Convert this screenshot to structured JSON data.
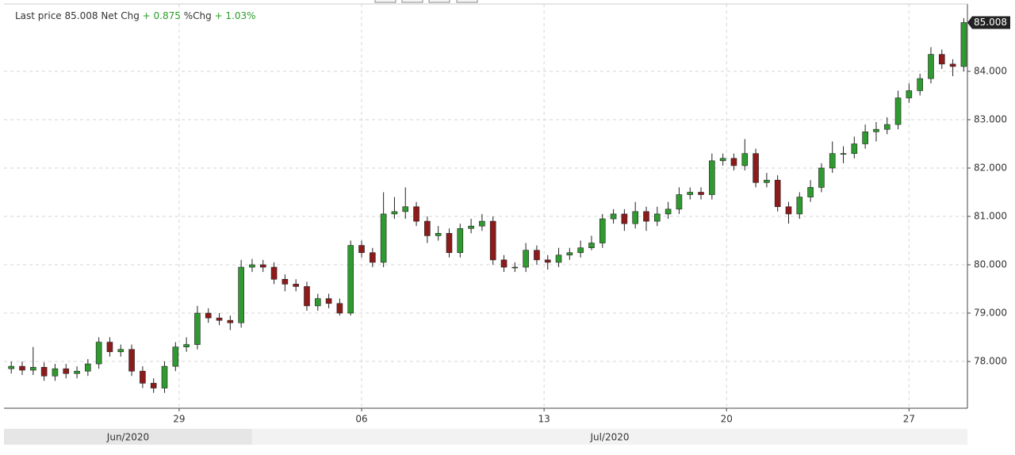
{
  "chart_data": {
    "type": "candlestick",
    "header": {
      "last_price_label": "Last price",
      "last_price": "85.008",
      "net_chg_label": "Net Chg",
      "net_chg": "+ 0.875",
      "pct_chg_label": "%Chg",
      "pct_chg": "+ 1.03%"
    },
    "last_value_label": "85.008",
    "up_color": "#2f9a2f",
    "down_color": "#8e1b1b",
    "grid": true,
    "ylim": [
      77.033,
      85.393
    ],
    "yticks": [
      {
        "value": 78,
        "label": "78.000"
      },
      {
        "value": 79,
        "label": "79.000"
      },
      {
        "value": 80,
        "label": "80.000"
      },
      {
        "value": 81,
        "label": "81.000"
      },
      {
        "value": 82,
        "label": "82.000"
      },
      {
        "value": 83,
        "label": "83.000"
      },
      {
        "value": 84,
        "label": "84.000"
      }
    ],
    "xlim": [
      -4.8,
      21.6
    ],
    "xticks": [
      {
        "value": 0,
        "label": "29"
      },
      {
        "value": 5,
        "label": "06"
      },
      {
        "value": 10,
        "label": "13"
      },
      {
        "value": 15,
        "label": "20"
      },
      {
        "value": 20,
        "label": "27"
      }
    ],
    "months": [
      {
        "label": "Jun/2020",
        "from": -4.8,
        "to": 2
      },
      {
        "label": "Jul/2020",
        "from": 2,
        "to": 21.6
      }
    ],
    "x": [
      -4.6,
      -4.3,
      -4.0,
      -3.7,
      -3.4,
      -3.1,
      -2.8,
      -2.5,
      -2.2,
      -1.9,
      -1.6,
      -1.3,
      -1.0,
      -0.7,
      -0.4,
      -0.1,
      0.2,
      0.5,
      0.8,
      1.1,
      1.4,
      1.7,
      2.0,
      2.3,
      2.6,
      2.9,
      3.2,
      3.5,
      3.8,
      4.1,
      4.4,
      4.7,
      5.0,
      5.3,
      5.6,
      5.9,
      6.2,
      6.5,
      6.8,
      7.1,
      7.4,
      7.7,
      8.0,
      8.3,
      8.6,
      8.9,
      9.2,
      9.5,
      9.8,
      10.1,
      10.4,
      10.7,
      11.0,
      11.3,
      11.6,
      11.9,
      12.2,
      12.5,
      12.8,
      13.1,
      13.4,
      13.7,
      14.0,
      14.3,
      14.6,
      14.9,
      15.2,
      15.5,
      15.8,
      16.1,
      16.4,
      16.7,
      17.0,
      17.3,
      17.6,
      17.9,
      18.2,
      18.5,
      18.8,
      19.1,
      19.4,
      19.7,
      20.0,
      20.3,
      20.6,
      20.9,
      21.2,
      21.5
    ],
    "open": [
      77.85,
      77.9,
      77.82,
      77.88,
      77.7,
      77.85,
      77.75,
      77.8,
      77.95,
      78.4,
      78.2,
      78.25,
      77.8,
      77.55,
      77.45,
      77.9,
      78.3,
      78.35,
      79.0,
      78.9,
      78.85,
      78.8,
      79.95,
      80.0,
      79.95,
      79.7,
      79.6,
      79.55,
      79.15,
      79.3,
      79.2,
      79.0,
      80.4,
      80.25,
      80.05,
      81.05,
      81.1,
      81.2,
      80.9,
      80.6,
      80.65,
      80.25,
      80.75,
      80.8,
      80.9,
      80.1,
      79.95,
      79.95,
      80.3,
      80.1,
      80.05,
      80.2,
      80.25,
      80.35,
      80.45,
      80.95,
      81.05,
      80.85,
      81.1,
      80.9,
      81.05,
      81.15,
      81.45,
      81.5,
      81.45,
      82.15,
      82.2,
      82.05,
      82.3,
      81.7,
      81.75,
      81.2,
      81.05,
      81.4,
      81.6,
      82.0,
      82.3,
      82.3,
      82.5,
      82.75,
      82.8,
      82.9,
      83.45,
      83.6,
      83.85,
      84.35,
      84.15,
      84.1
    ],
    "high": [
      78.0,
      78.0,
      78.3,
      77.98,
      77.95,
      77.95,
      77.9,
      78.05,
      78.5,
      78.5,
      78.35,
      78.35,
      77.9,
      77.65,
      78.0,
      78.4,
      78.5,
      79.15,
      79.1,
      79.0,
      78.95,
      80.1,
      80.12,
      80.1,
      80.05,
      79.8,
      79.7,
      79.65,
      79.4,
      79.4,
      79.3,
      80.5,
      80.5,
      80.35,
      81.5,
      81.4,
      81.6,
      81.3,
      81.0,
      80.8,
      80.75,
      80.85,
      80.95,
      81.05,
      81.0,
      80.2,
      80.05,
      80.45,
      80.4,
      80.2,
      80.35,
      80.35,
      80.5,
      80.6,
      81.05,
      81.15,
      81.15,
      81.3,
      81.2,
      81.2,
      81.3,
      81.6,
      81.6,
      81.6,
      82.3,
      82.3,
      82.3,
      82.6,
      82.4,
      81.9,
      81.85,
      81.3,
      81.5,
      81.75,
      82.1,
      82.55,
      82.45,
      82.65,
      82.9,
      82.95,
      83.05,
      83.6,
      83.75,
      83.95,
      84.5,
      84.45,
      84.25,
      85.1
    ],
    "low": [
      77.75,
      77.72,
      77.72,
      77.6,
      77.6,
      77.65,
      77.65,
      77.7,
      77.85,
      78.1,
      78.1,
      77.7,
      77.45,
      77.35,
      77.35,
      77.8,
      78.2,
      78.25,
      78.8,
      78.75,
      78.65,
      78.7,
      79.85,
      79.85,
      79.6,
      79.45,
      79.45,
      79.05,
      79.05,
      79.1,
      78.95,
      78.95,
      80.15,
      79.95,
      79.95,
      80.95,
      80.95,
      80.8,
      80.45,
      80.5,
      80.15,
      80.15,
      80.65,
      80.7,
      80.0,
      79.85,
      79.85,
      79.85,
      80.0,
      79.9,
      79.95,
      80.1,
      80.15,
      80.3,
      80.35,
      80.85,
      80.7,
      80.75,
      80.7,
      80.8,
      80.95,
      81.05,
      81.35,
      81.35,
      81.35,
      82.05,
      81.95,
      81.95,
      81.6,
      81.6,
      81.1,
      80.85,
      80.95,
      81.3,
      81.5,
      81.9,
      82.1,
      82.2,
      82.4,
      82.55,
      82.7,
      82.8,
      83.35,
      83.5,
      83.75,
      84.05,
      83.9,
      84.0
    ],
    "close": [
      77.9,
      77.82,
      77.88,
      77.7,
      77.85,
      77.75,
      77.8,
      77.95,
      78.4,
      78.2,
      78.25,
      77.8,
      77.55,
      77.45,
      77.9,
      78.3,
      78.35,
      79.0,
      78.9,
      78.85,
      78.8,
      79.95,
      80.0,
      79.95,
      79.7,
      79.6,
      79.55,
      79.15,
      79.3,
      79.2,
      79.0,
      80.4,
      80.25,
      80.05,
      81.05,
      81.1,
      81.2,
      80.9,
      80.6,
      80.65,
      80.25,
      80.75,
      80.8,
      80.9,
      80.1,
      79.95,
      79.95,
      80.3,
      80.1,
      80.05,
      80.2,
      80.25,
      80.35,
      80.45,
      80.95,
      81.05,
      80.85,
      81.1,
      80.9,
      81.05,
      81.15,
      81.45,
      81.5,
      81.45,
      82.15,
      82.2,
      82.05,
      82.3,
      81.7,
      81.75,
      81.2,
      81.05,
      81.4,
      81.6,
      82.0,
      82.3,
      82.3,
      82.5,
      82.75,
      82.8,
      82.9,
      83.45,
      83.6,
      83.85,
      84.35,
      84.15,
      84.1,
      85.008
    ]
  }
}
